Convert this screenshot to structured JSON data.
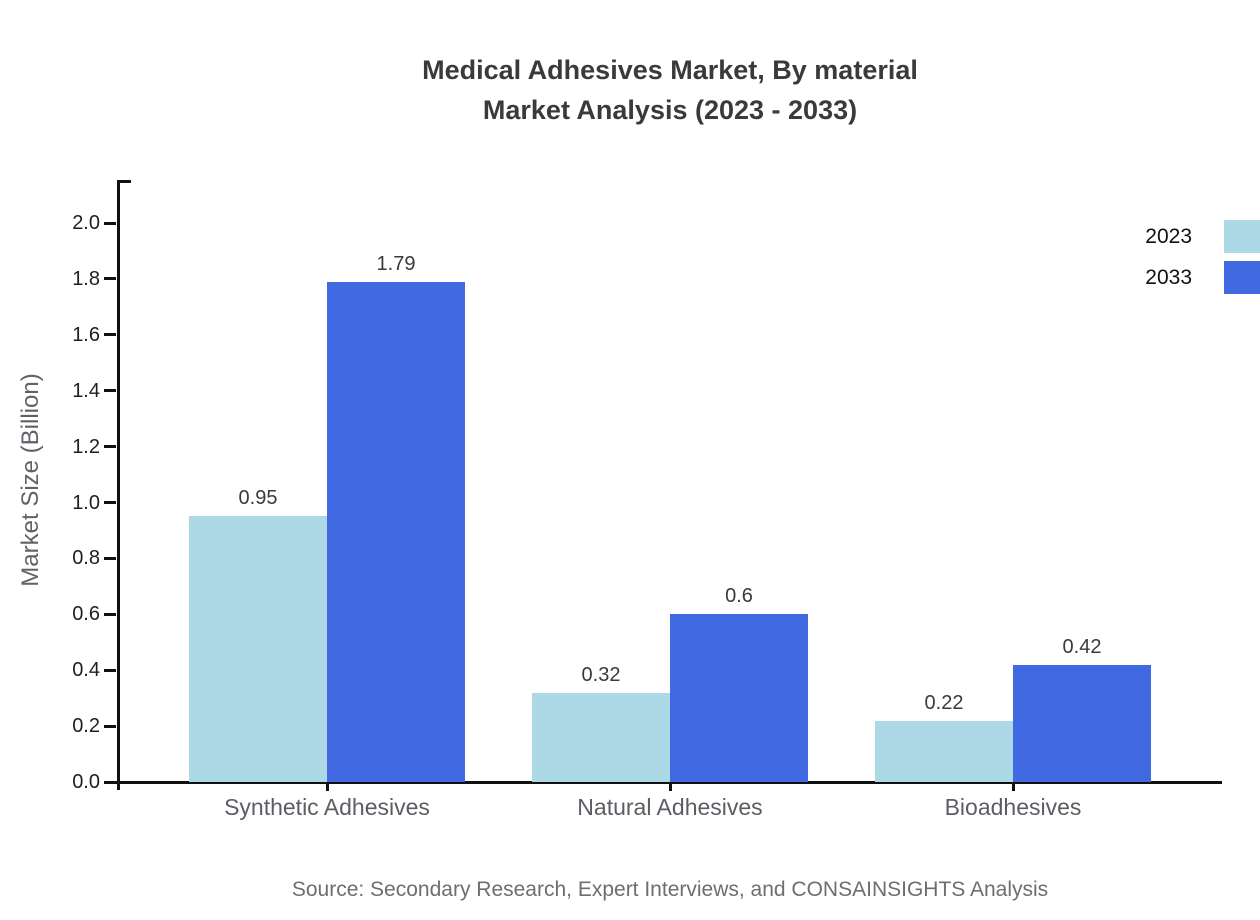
{
  "title": {
    "line1": "Medical Adhesives Market, By material",
    "line2": "Market Analysis (2023 - 2033)"
  },
  "source": "Source: Secondary Research, Expert Interviews, and CONSAINSIGHTS Analysis",
  "chart_data": {
    "type": "bar",
    "title": "Medical Adhesives Market, By material Market Analysis (2023 - 2033)",
    "categories": [
      "Synthetic Adhesives",
      "Natural Adhesives",
      "Bioadhesives"
    ],
    "series": [
      {
        "name": "2023",
        "color": "#ADD8E6",
        "values": [
          0.95,
          0.32,
          0.22
        ]
      },
      {
        "name": "2033",
        "color": "#4169E1",
        "values": [
          1.79,
          0.6,
          0.42
        ]
      }
    ],
    "xlabel": "",
    "ylabel": "Market Size (Billion)",
    "ylim": [
      0,
      2.0
    ],
    "ytick_step": 0.2,
    "grid": false,
    "legend_position": "top-right",
    "value_labels_shown": true
  }
}
